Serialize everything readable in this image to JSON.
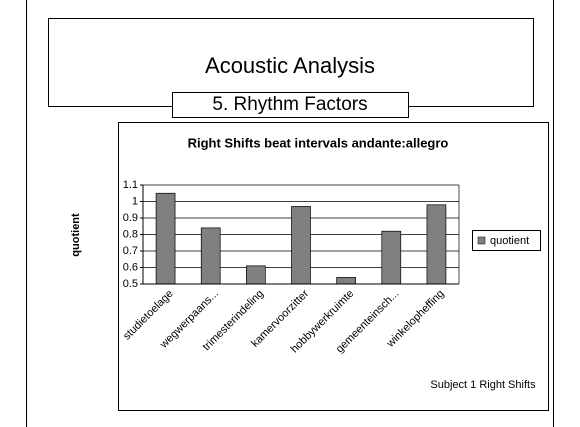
{
  "slide": {
    "title": "Acoustic Analysis",
    "subtitle": "5. Rhythm Factors"
  },
  "chart_data": {
    "type": "bar",
    "title": "Right Shifts beat intervals andante:allegro",
    "y_label": "quotient",
    "annotation": "Subject 1 Right Shifts",
    "categories": [
      "studietoelage",
      "wegwerpaans...",
      "trimesterindeling",
      "kamervoorzitter",
      "hobbywerkruimte",
      "gemeenteinsch...",
      "winkelopheffing"
    ],
    "series": [
      {
        "name": "quotient",
        "color": "#808080",
        "values": [
          1.05,
          0.84,
          0.61,
          0.97,
          0.54,
          0.82,
          0.98
        ]
      }
    ],
    "ylim": [
      0.5,
      1.1
    ],
    "yticks": [
      0.5,
      0.6,
      0.7,
      0.8,
      0.9,
      1,
      1.1
    ],
    "grid": true,
    "legend": "right"
  }
}
